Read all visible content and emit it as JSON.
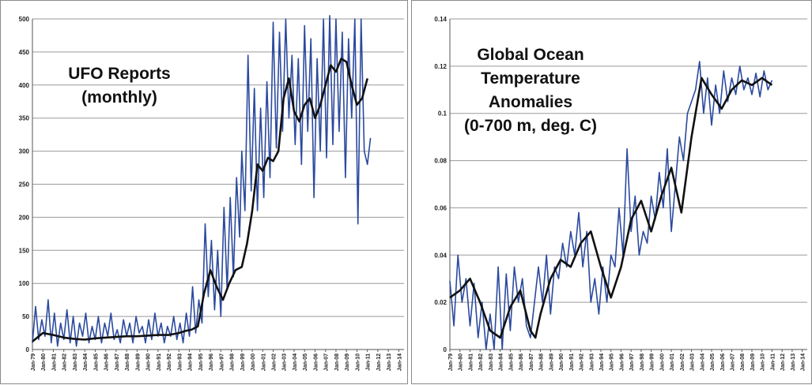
{
  "chart_data": [
    {
      "type": "line",
      "title": "UFO Reports\n(monthly)",
      "title_lines": [
        "UFO Reports",
        "(monthly)"
      ],
      "ylim": [
        0,
        500
      ],
      "yticks": [
        0,
        50,
        100,
        150,
        200,
        250,
        300,
        350,
        400,
        450,
        500
      ],
      "ytick_labels": [
        "0",
        "50",
        "100",
        "150",
        "200",
        "250",
        "300",
        "350",
        "400",
        "450",
        "500"
      ],
      "xlim": [
        1979,
        2014.5
      ],
      "xtick_labels": [
        "Jan-79",
        "Jan-80",
        "Jan-81",
        "Jan-82",
        "Jan-83",
        "Jan-84",
        "Jan-85",
        "Jan-86",
        "Jan-87",
        "Jan-88",
        "Jan-89",
        "Jan-90",
        "Jan-91",
        "Jan-92",
        "Jan-93",
        "Jan-94",
        "Jan-95",
        "Jan-96",
        "Jan-97",
        "Jan-98",
        "Jan-99",
        "Jan-00",
        "Jan-01",
        "Jan-02",
        "Jan-03",
        "Jan-04",
        "Jan-05",
        "Jan-06",
        "Jan-07",
        "Jan-08",
        "Jan-09",
        "Jan-10",
        "Jan-11",
        "Jan-12",
        "Jan-13",
        "Jan-14"
      ],
      "grid": true,
      "series": [
        {
          "role": "monthly",
          "color": "#2b4a9e",
          "x": [
            1979.0,
            1979.3,
            1979.6,
            1979.9,
            1980.2,
            1980.5,
            1980.8,
            1981.1,
            1981.4,
            1981.7,
            1982.0,
            1982.3,
            1982.6,
            1982.9,
            1983.2,
            1983.5,
            1983.8,
            1984.1,
            1984.4,
            1984.7,
            1985.0,
            1985.3,
            1985.6,
            1985.9,
            1986.2,
            1986.5,
            1986.8,
            1987.1,
            1987.4,
            1987.7,
            1988.0,
            1988.3,
            1988.6,
            1988.9,
            1989.2,
            1989.5,
            1989.8,
            1990.1,
            1990.4,
            1990.7,
            1991.0,
            1991.3,
            1991.6,
            1991.9,
            1992.2,
            1992.5,
            1992.8,
            1993.1,
            1993.4,
            1993.7,
            1994.0,
            1994.3,
            1994.6,
            1994.9,
            1995.2,
            1995.5,
            1995.8,
            1996.1,
            1996.4,
            1996.7,
            1997.0,
            1997.3,
            1997.6,
            1997.9,
            1998.2,
            1998.5,
            1998.8,
            1999.0,
            1999.3,
            1999.6,
            1999.9,
            2000.2,
            2000.5,
            2000.8,
            2001.1,
            2001.4,
            2001.7,
            2002.0,
            2002.3,
            2002.6,
            2002.9,
            2003.2,
            2003.5,
            2003.8,
            2004.1,
            2004.4,
            2004.7,
            2005.0,
            2005.3,
            2005.6,
            2005.9,
            2006.2,
            2006.5,
            2006.8,
            2007.1,
            2007.4,
            2007.7,
            2008.0,
            2008.3,
            2008.6,
            2008.9,
            2009.2,
            2009.5,
            2009.8,
            2010.1,
            2010.4,
            2010.7,
            2011.0,
            2011.3
          ],
          "y": [
            10,
            65,
            15,
            45,
            20,
            75,
            10,
            55,
            5,
            40,
            15,
            60,
            10,
            50,
            5,
            40,
            20,
            55,
            10,
            35,
            15,
            50,
            10,
            40,
            20,
            55,
            15,
            30,
            10,
            45,
            20,
            40,
            10,
            50,
            25,
            35,
            10,
            45,
            15,
            55,
            20,
            40,
            10,
            35,
            20,
            50,
            15,
            40,
            10,
            55,
            20,
            95,
            25,
            75,
            40,
            190,
            80,
            165,
            60,
            150,
            50,
            215,
            90,
            230,
            110,
            260,
            170,
            300,
            210,
            445,
            240,
            395,
            210,
            365,
            230,
            405,
            260,
            495,
            305,
            480,
            330,
            500,
            350,
            445,
            310,
            440,
            280,
            490,
            330,
            470,
            230,
            440,
            300,
            500,
            290,
            505,
            310,
            500,
            330,
            480,
            260,
            470,
            350,
            500,
            190,
            500,
            300,
            280,
            320
          ]
        },
        {
          "role": "moving average",
          "color": "#111111",
          "x": [
            1979.0,
            1980.0,
            1981.0,
            1982.0,
            1983.0,
            1984.0,
            1985.0,
            1986.0,
            1987.0,
            1988.0,
            1989.0,
            1990.0,
            1991.0,
            1992.0,
            1993.0,
            1993.6,
            1994.2,
            1994.8,
            1995.4,
            1996.0,
            1996.6,
            1997.2,
            1997.8,
            1998.4,
            1999.0,
            1999.5,
            2000.0,
            2000.5,
            2001.0,
            2001.5,
            2002.0,
            2002.5,
            2003.0,
            2003.5,
            2004.0,
            2004.5,
            2005.0,
            2005.5,
            2006.0,
            2006.5,
            2007.0,
            2007.5,
            2008.0,
            2008.5,
            2009.0,
            2009.5,
            2010.0,
            2010.5,
            2011.0
          ],
          "y": [
            12,
            25,
            22,
            18,
            16,
            15,
            17,
            18,
            19,
            20,
            20,
            21,
            22,
            22,
            25,
            28,
            30,
            35,
            85,
            120,
            95,
            75,
            100,
            120,
            125,
            160,
            210,
            280,
            270,
            290,
            285,
            300,
            380,
            410,
            360,
            345,
            370,
            380,
            350,
            370,
            400,
            430,
            420,
            440,
            435,
            400,
            370,
            380,
            410
          ]
        }
      ]
    },
    {
      "type": "line",
      "title": "Global Ocean\nTemperature\nAnomalies\n(0-700 m, deg. C)",
      "title_lines": [
        "Global Ocean",
        "Temperature",
        "Anomalies",
        "(0-700 m, deg. C)"
      ],
      "ylim": [
        0,
        0.14
      ],
      "yticks": [
        0,
        0.02,
        0.04,
        0.06,
        0.08,
        0.1,
        0.12,
        0.14
      ],
      "ytick_labels": [
        "0",
        "0.02",
        "0.04",
        "0.06",
        "0.08",
        "0.1",
        "0.12",
        "0.14"
      ],
      "xlim": [
        1979,
        2014.5
      ],
      "xtick_labels": [
        "Jan-79",
        "Jan-80",
        "Jan-81",
        "Jan-82",
        "Jan-83",
        "Jan-84",
        "Jan-85",
        "Jan-86",
        "Jan-87",
        "Jan-88",
        "Jan-89",
        "Jan-90",
        "Jan-91",
        "Jan-92",
        "Jan-93",
        "Jan-94",
        "Jan-95",
        "Jan-96",
        "Jan-97",
        "Jan-98",
        "Jan-99",
        "Jan-00",
        "Jan-01",
        "Jan-02",
        "Jan-03",
        "Jan-04",
        "Jan-05",
        "Jan-06",
        "Jan-07",
        "Jan-08",
        "Jan-09",
        "Jan-10",
        "Jan-11",
        "Jan-12",
        "Jan-13",
        "Jan-14"
      ],
      "grid": true,
      "series": [
        {
          "role": "quarterly",
          "color": "#2b4a9e",
          "x": [
            1979.0,
            1979.4,
            1979.8,
            1980.2,
            1980.6,
            1981.0,
            1981.4,
            1981.8,
            1982.2,
            1982.6,
            1983.0,
            1983.4,
            1983.8,
            1984.2,
            1984.6,
            1985.0,
            1985.4,
            1985.8,
            1986.2,
            1986.6,
            1987.0,
            1987.4,
            1987.8,
            1988.2,
            1988.6,
            1989.0,
            1989.4,
            1989.8,
            1990.2,
            1990.6,
            1991.0,
            1991.4,
            1991.8,
            1992.2,
            1992.6,
            1993.0,
            1993.4,
            1993.8,
            1994.2,
            1994.6,
            1995.0,
            1995.4,
            1995.8,
            1996.2,
            1996.6,
            1997.0,
            1997.4,
            1997.8,
            1998.2,
            1998.6,
            1999.0,
            1999.4,
            1999.8,
            2000.2,
            2000.6,
            2001.0,
            2001.4,
            2001.8,
            2002.2,
            2002.6,
            2003.0,
            2003.4,
            2003.8,
            2004.2,
            2004.6,
            2005.0,
            2005.4,
            2005.8,
            2006.2,
            2006.6,
            2007.0,
            2007.4,
            2007.8,
            2008.2,
            2008.6,
            2009.0,
            2009.4,
            2009.8,
            2010.2,
            2010.6,
            2011.0
          ],
          "y": [
            0.029,
            0.01,
            0.04,
            0.02,
            0.03,
            0.01,
            0.028,
            0.005,
            0.02,
            0.0,
            0.015,
            0.0,
            0.035,
            0.0,
            0.032,
            0.008,
            0.035,
            0.02,
            0.03,
            0.01,
            0.005,
            0.02,
            0.035,
            0.02,
            0.04,
            0.015,
            0.035,
            0.03,
            0.045,
            0.035,
            0.05,
            0.04,
            0.058,
            0.035,
            0.05,
            0.02,
            0.03,
            0.015,
            0.035,
            0.02,
            0.04,
            0.035,
            0.06,
            0.04,
            0.085,
            0.05,
            0.065,
            0.04,
            0.05,
            0.045,
            0.065,
            0.055,
            0.075,
            0.06,
            0.085,
            0.05,
            0.07,
            0.09,
            0.08,
            0.1,
            0.105,
            0.11,
            0.122,
            0.1,
            0.115,
            0.095,
            0.112,
            0.1,
            0.118,
            0.105,
            0.115,
            0.108,
            0.12,
            0.11,
            0.115,
            0.108,
            0.117,
            0.107,
            0.118,
            0.11,
            0.114
          ]
        },
        {
          "role": "moving average",
          "color": "#111111",
          "x": [
            1979.0,
            1980.0,
            1981.0,
            1982.0,
            1983.0,
            1984.0,
            1985.0,
            1986.0,
            1987.0,
            1987.5,
            1988.0,
            1989.0,
            1990.0,
            1991.0,
            1992.0,
            1993.0,
            1994.0,
            1995.0,
            1996.0,
            1997.0,
            1998.0,
            1999.0,
            2000.0,
            2001.0,
            2002.0,
            2003.0,
            2004.0,
            2005.0,
            2006.0,
            2007.0,
            2008.0,
            2009.0,
            2010.0,
            2011.0
          ],
          "y": [
            0.022,
            0.025,
            0.03,
            0.02,
            0.008,
            0.005,
            0.018,
            0.025,
            0.008,
            0.005,
            0.015,
            0.03,
            0.038,
            0.035,
            0.045,
            0.05,
            0.035,
            0.022,
            0.035,
            0.055,
            0.063,
            0.05,
            0.065,
            0.077,
            0.058,
            0.09,
            0.115,
            0.108,
            0.102,
            0.11,
            0.114,
            0.112,
            0.115,
            0.112
          ]
        }
      ]
    }
  ],
  "colors": {
    "series_blue": "#2b4a9e",
    "average_black": "#111111",
    "grid": "#9a9a9a"
  }
}
